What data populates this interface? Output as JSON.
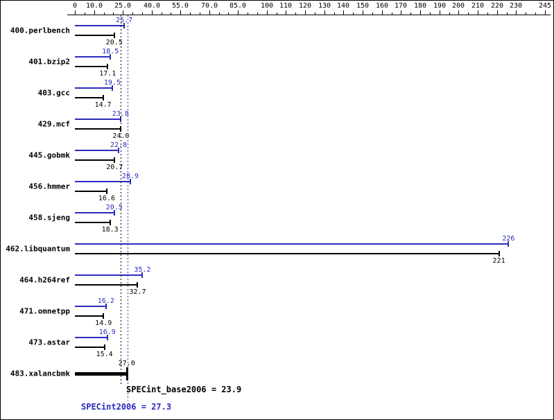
{
  "chart_data": {
    "type": "bar",
    "orientation": "horizontal",
    "title": "SPEC CPU2006 integer results chart",
    "axis": {
      "min": 0,
      "max": 245,
      "position": "top",
      "grid": false,
      "minor_tick_step": 5,
      "major_ticks": [
        {
          "value": 0,
          "label": "0"
        },
        {
          "value": 10,
          "label": "10.0"
        },
        {
          "value": 25,
          "label": "25.0"
        },
        {
          "value": 40,
          "label": "40.0"
        },
        {
          "value": 55,
          "label": "55.0"
        },
        {
          "value": 70,
          "label": "70.0"
        },
        {
          "value": 85,
          "label": "85.0"
        },
        {
          "value": 100,
          "label": "100"
        },
        {
          "value": 110,
          "label": "110"
        },
        {
          "value": 120,
          "label": "120"
        },
        {
          "value": 130,
          "label": "130"
        },
        {
          "value": 140,
          "label": "140"
        },
        {
          "value": 150,
          "label": "150"
        },
        {
          "value": 160,
          "label": "160"
        },
        {
          "value": 170,
          "label": "170"
        },
        {
          "value": 180,
          "label": "180"
        },
        {
          "value": 190,
          "label": "190"
        },
        {
          "value": 200,
          "label": "200"
        },
        {
          "value": 210,
          "label": "210"
        },
        {
          "value": 220,
          "label": "220"
        },
        {
          "value": 230,
          "label": "230"
        },
        {
          "value": 245,
          "label": "245"
        }
      ]
    },
    "colors": {
      "peak": "#2a2ac0",
      "base": "#000000"
    },
    "series_names": {
      "peak": "SPECint2006",
      "base": "SPECint_base2006"
    },
    "benchmarks": [
      {
        "name": "400.perlbench",
        "peak": 25.7,
        "peak_label": "25.7",
        "base": 20.5,
        "base_label": "20.5"
      },
      {
        "name": "401.bzip2",
        "peak": 18.5,
        "peak_label": "18.5",
        "base": 17.1,
        "base_label": "17.1"
      },
      {
        "name": "403.gcc",
        "peak": 19.5,
        "peak_label": "19.5",
        "base": 14.7,
        "base_label": "14.7"
      },
      {
        "name": "429.mcf",
        "peak": 23.8,
        "peak_label": "23.8",
        "base": 24.0,
        "base_label": "24.0"
      },
      {
        "name": "445.gobmk",
        "peak": 22.8,
        "peak_label": "22.8",
        "base": 20.7,
        "base_label": "20.7"
      },
      {
        "name": "456.hmmer",
        "peak": 28.9,
        "peak_label": "28.9",
        "base": 16.6,
        "base_label": "16.6"
      },
      {
        "name": "458.sjeng",
        "peak": 20.5,
        "peak_label": "20.5",
        "base": 18.3,
        "base_label": "18.3"
      },
      {
        "name": "462.libquantum",
        "peak": 226,
        "peak_label": "226",
        "base": 221,
        "base_label": "221"
      },
      {
        "name": "464.h264ref",
        "peak": 35.2,
        "peak_label": "35.2",
        "base": 32.7,
        "base_label": "32.7"
      },
      {
        "name": "471.omnetpp",
        "peak": 16.2,
        "peak_label": "16.2",
        "base": 14.9,
        "base_label": "14.9"
      },
      {
        "name": "473.astar",
        "peak": 16.9,
        "peak_label": "16.9",
        "base": 15.4,
        "base_label": "15.4"
      },
      {
        "name": "483.xalancbmk",
        "peak": 27.0,
        "peak_label": "27.0",
        "base": null,
        "base_label": null,
        "highlight": true,
        "peak_label_color": "#000000"
      }
    ],
    "means": {
      "base": {
        "value": 23.9,
        "label": "SPECint_base2006 = 23.9"
      },
      "peak": {
        "value": 27.3,
        "label": "SPECint2006 = 27.3"
      }
    }
  }
}
